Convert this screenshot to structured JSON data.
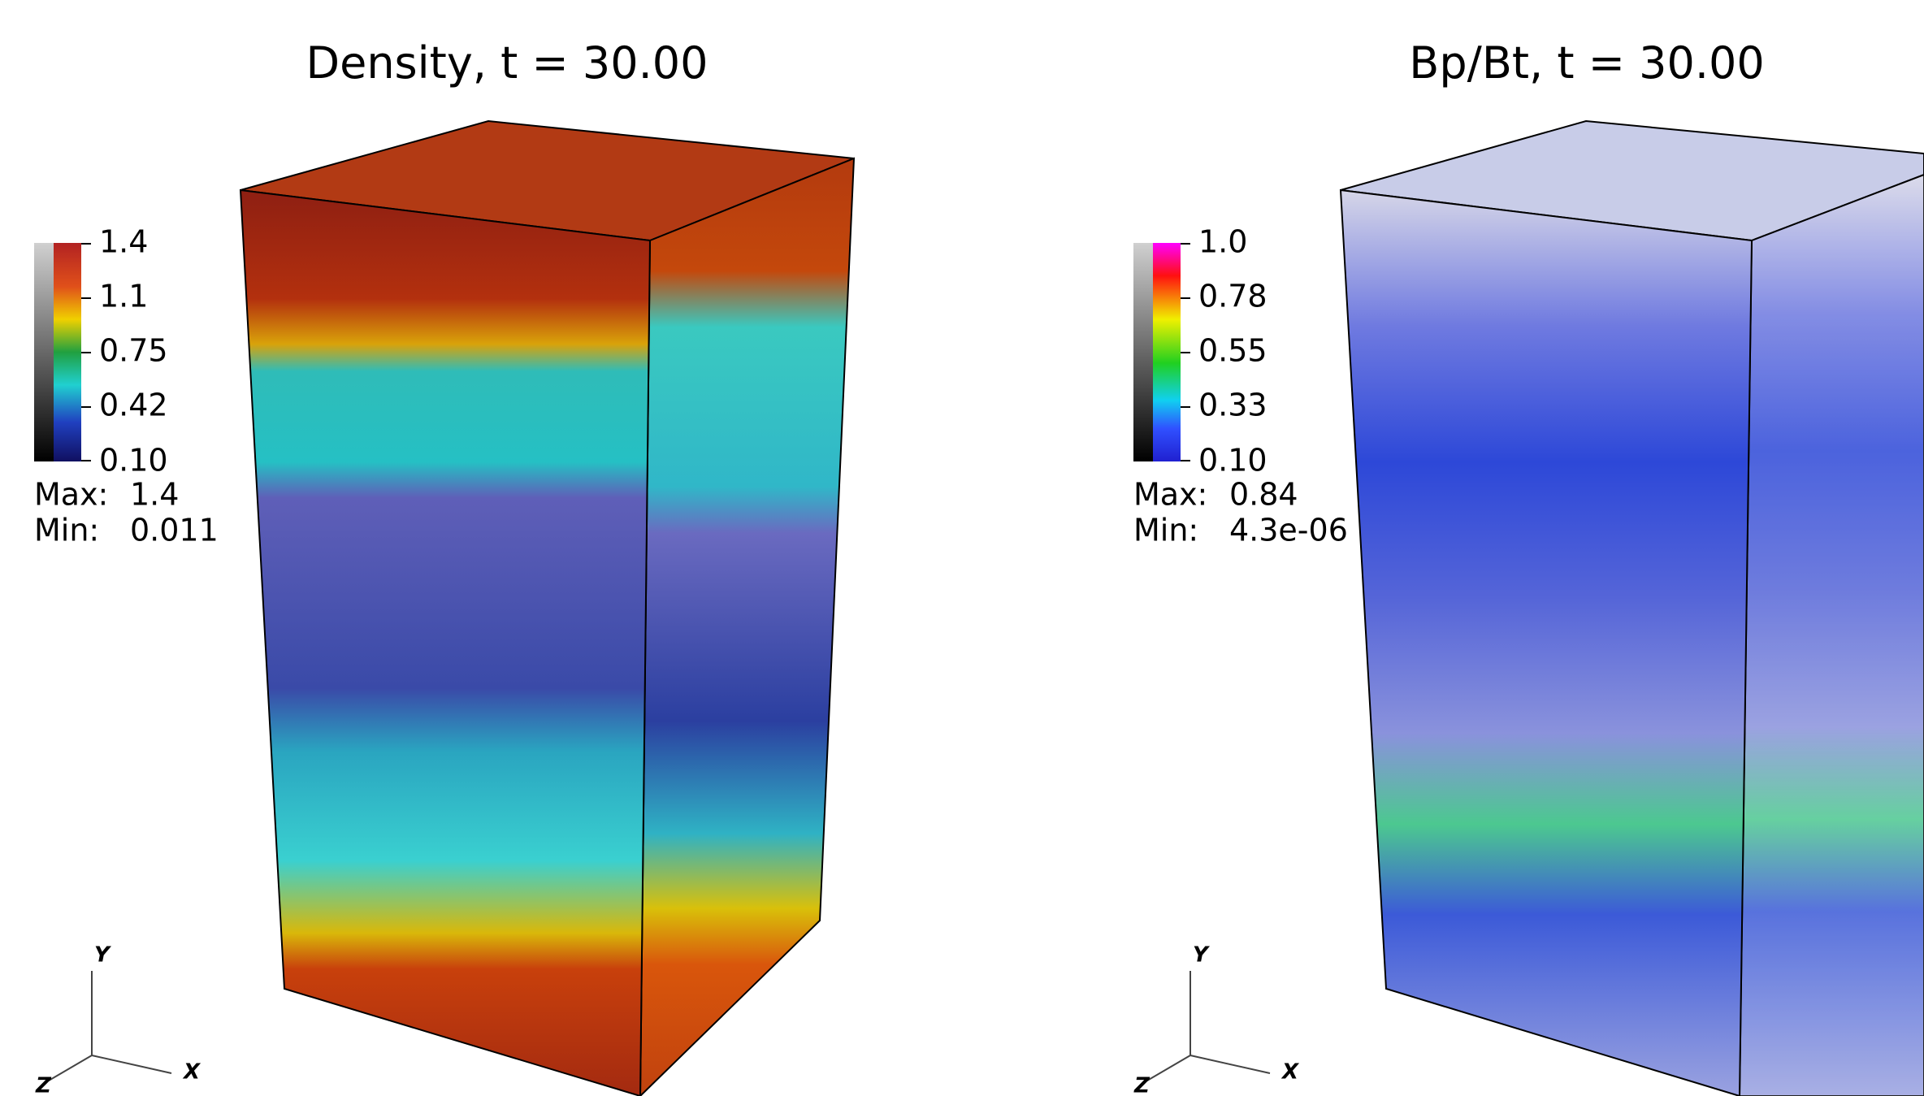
{
  "panels": [
    {
      "title": "Density, t = 30.00",
      "colorbar": {
        "ticks": [
          "1.4",
          "1.1",
          "0.75",
          "0.42",
          "0.10"
        ]
      },
      "max_label": "Max:",
      "max": "1.4",
      "min_label": "Min:",
      "min": "0.011",
      "axes": {
        "y": "Y",
        "x": "X",
        "z": "Z"
      }
    },
    {
      "title": "Bp/Bt, t = 30.00",
      "colorbar": {
        "ticks": [
          "1.0",
          "0.78",
          "0.55",
          "0.33",
          "0.10"
        ]
      },
      "max_label": "Max:",
      "max": "0.84",
      "min_label": "Min:",
      "min": "4.3e-06",
      "axes": {
        "y": "Y",
        "x": "X",
        "z": "Z"
      }
    }
  ]
}
